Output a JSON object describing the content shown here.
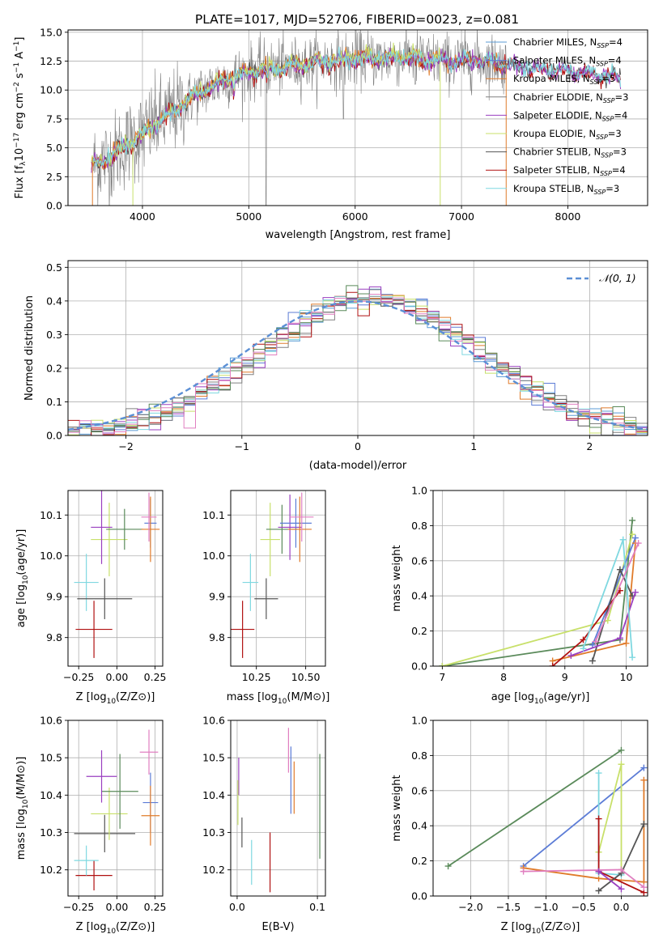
{
  "figure_title": "PLATE=1017, MJD=52706, FIBERID=0023, z=0.081",
  "colors": {
    "Chabrier MILES": "#5b9bd5",
    "Salpeter MILES": "#5c7cd6",
    "Kroupa MILES": "#e07b2a",
    "Chabrier ELODIE": "#808080",
    "Salpeter ELODIE": "#9a3fc0",
    "Kroupa ELODIE": "#c8e06a",
    "Chabrier STELIB": "#555555",
    "Salpeter STELIB": "#b01010",
    "Kroupa STELIB": "#7fd8e0",
    "normal": "#5b8fd5",
    "green": "#5a8a5a",
    "pink": "#e07fc0"
  },
  "chart_data": [
    {
      "id": "spectrum",
      "type": "line",
      "xlabel": "wavelength [Angstrom, rest frame]",
      "ylabel": "Flux [f_λ10^-17 erg cm^-2 s^-1 A^-1]",
      "xlim": [
        3300,
        8750
      ],
      "ylim": [
        0,
        15.2
      ],
      "xticks": [
        4000,
        5000,
        6000,
        7000,
        8000
      ],
      "yticks": [
        0.0,
        2.5,
        5.0,
        7.5,
        10.0,
        12.5,
        15.0
      ],
      "legend": [
        {
          "label": "Chabrier MILES, N",
          "sub": "SSP",
          "suffix": "=4",
          "color": "#5b9bd5"
        },
        {
          "label": "Salpeter MILES, N",
          "sub": "SSP",
          "suffix": "=4",
          "color": "#5c7cd6"
        },
        {
          "label": "Kroupa MILES, N",
          "sub": "SSP",
          "suffix": "=5",
          "color": "#e07b2a"
        },
        {
          "label": "Chabrier ELODIE, N",
          "sub": "SSP",
          "suffix": "=3",
          "color": "#808080"
        },
        {
          "label": "Salpeter ELODIE, N",
          "sub": "SSP",
          "suffix": "=4",
          "color": "#9a3fc0"
        },
        {
          "label": "Kroupa ELODIE, N",
          "sub": "SSP",
          "suffix": "=3",
          "color": "#c8e06a"
        },
        {
          "label": "Chabrier STELIB, N",
          "sub": "SSP",
          "suffix": "=3",
          "color": "#555555"
        },
        {
          "label": "Salpeter STELIB, N",
          "sub": "SSP",
          "suffix": "=4",
          "color": "#b01010"
        },
        {
          "label": "Kroupa STELIB, N",
          "sub": "SSP",
          "suffix": "=3",
          "color": "#7fd8e0"
        }
      ],
      "continuum": [
        [
          3520,
          3.5
        ],
        [
          3700,
          4.2
        ],
        [
          3900,
          5.6
        ],
        [
          4000,
          6.1
        ],
        [
          4100,
          7.0
        ],
        [
          4300,
          8.2
        ],
        [
          4500,
          9.6
        ],
        [
          4700,
          10.6
        ],
        [
          4900,
          11.3
        ],
        [
          5100,
          11.8
        ],
        [
          5300,
          12.0
        ],
        [
          5500,
          12.2
        ],
        [
          5700,
          12.5
        ],
        [
          5900,
          12.6
        ],
        [
          6100,
          12.8
        ],
        [
          6300,
          12.7
        ],
        [
          6500,
          12.9
        ],
        [
          6700,
          12.6
        ],
        [
          6900,
          12.5
        ],
        [
          7100,
          12.6
        ],
        [
          7300,
          12.5
        ],
        [
          7450,
          12.2
        ],
        [
          7700,
          11.9
        ],
        [
          8000,
          11.7
        ],
        [
          8300,
          11.4
        ],
        [
          8500,
          11.1
        ]
      ]
    },
    {
      "id": "residuals",
      "type": "line",
      "xlabel": "(data-model)/error",
      "ylabel": "Normed distribution",
      "xlim": [
        -2.5,
        2.5
      ],
      "ylim": [
        0,
        0.52
      ],
      "xticks": [
        -2,
        -1,
        0,
        1,
        2
      ],
      "yticks": [
        0.0,
        0.1,
        0.2,
        0.3,
        0.4,
        0.5
      ],
      "legend_label": "𝒩(0, 1)",
      "normal": {
        "mean": 0,
        "sigma": 1
      }
    },
    {
      "id": "age_vs_Z",
      "type": "scatter",
      "xlabel": "Z [log10(Z/Z⊙)]",
      "ylabel": "age  [log10(age/yr)]",
      "xlim": [
        -0.32,
        0.3
      ],
      "ylim": [
        9.73,
        10.16
      ],
      "xticks": [
        -0.25,
        0.0,
        0.25
      ],
      "xticklabels": [
        "−0.25",
        "0.00",
        "0.25"
      ],
      "yticks": [
        9.8,
        9.9,
        10.0,
        10.1
      ],
      "points": [
        {
          "x": -0.15,
          "y": 9.82,
          "xerr": 0.12,
          "yerr": 0.07,
          "color": "#b01010"
        },
        {
          "x": -0.2,
          "y": 9.935,
          "xerr": 0.08,
          "yerr": 0.07,
          "color": "#7fd8e0"
        },
        {
          "x": -0.08,
          "y": 9.895,
          "xerr": 0.18,
          "yerr": 0.05,
          "color": "#555555"
        },
        {
          "x": -0.05,
          "y": 10.04,
          "xerr": 0.12,
          "yerr": 0.09,
          "color": "#c8e06a"
        },
        {
          "x": -0.1,
          "y": 10.07,
          "xerr": 0.07,
          "yerr": 0.09,
          "color": "#9a3fc0"
        },
        {
          "x": 0.05,
          "y": 10.065,
          "xerr": 0.12,
          "yerr": 0.05,
          "color": "#5a8a5a"
        },
        {
          "x": 0.22,
          "y": 10.08,
          "xerr": 0.04,
          "yerr": 0.06,
          "color": "#5c7cd6"
        },
        {
          "x": 0.22,
          "y": 10.065,
          "xerr": 0.06,
          "yerr": 0.08,
          "color": "#e07b2a"
        },
        {
          "x": 0.21,
          "y": 10.095,
          "xerr": 0.05,
          "yerr": 0.06,
          "color": "#e07fc0"
        }
      ]
    },
    {
      "id": "age_vs_mass",
      "type": "scatter",
      "xlabel": "mass [log10(M/M⊙)]",
      "ylabel": "",
      "xlim": [
        10.12,
        10.6
      ],
      "ylim": [
        9.73,
        10.16
      ],
      "xticks": [
        10.25,
        10.5
      ],
      "xticklabels": [
        "10.25",
        "10.50"
      ],
      "yticks": [
        9.8,
        9.9,
        10.0,
        10.1
      ],
      "points": [
        {
          "x": 10.18,
          "y": 9.82,
          "xerr": 0.06,
          "yerr": 0.07,
          "color": "#b01010"
        },
        {
          "x": 10.22,
          "y": 9.935,
          "xerr": 0.04,
          "yerr": 0.07,
          "color": "#7fd8e0"
        },
        {
          "x": 10.3,
          "y": 9.895,
          "xerr": 0.06,
          "yerr": 0.05,
          "color": "#555555"
        },
        {
          "x": 10.32,
          "y": 10.04,
          "xerr": 0.05,
          "yerr": 0.09,
          "color": "#c8e06a"
        },
        {
          "x": 10.38,
          "y": 10.065,
          "xerr": 0.08,
          "yerr": 0.06,
          "color": "#5a8a5a"
        },
        {
          "x": 10.42,
          "y": 10.07,
          "xerr": 0.06,
          "yerr": 0.08,
          "color": "#9a3fc0"
        },
        {
          "x": 10.45,
          "y": 10.08,
          "xerr": 0.08,
          "yerr": 0.06,
          "color": "#5c7cd6"
        },
        {
          "x": 10.47,
          "y": 10.065,
          "xerr": 0.06,
          "yerr": 0.08,
          "color": "#e07b2a"
        },
        {
          "x": 10.48,
          "y": 10.095,
          "xerr": 0.06,
          "yerr": 0.06,
          "color": "#e07fc0"
        }
      ]
    },
    {
      "id": "weight_vs_age",
      "type": "line",
      "xlabel": "age  [log10(age/yr)]",
      "ylabel": "mass weight",
      "xlim": [
        6.85,
        10.35
      ],
      "ylim": [
        0,
        1.0
      ],
      "xticks": [
        7,
        8,
        9,
        10
      ],
      "yticks": [
        0.0,
        0.2,
        0.4,
        0.6,
        0.8,
        1.0
      ],
      "series": [
        {
          "color": "#5a8a5a",
          "pts": [
            [
              7.0,
              0.0
            ],
            [
              9.9,
              0.15
            ],
            [
              10.1,
              0.83
            ]
          ]
        },
        {
          "color": "#c8e06a",
          "pts": [
            [
              7.0,
              0.0
            ],
            [
              9.7,
              0.26
            ],
            [
              10.1,
              0.75
            ]
          ]
        },
        {
          "color": "#5c7cd6",
          "pts": [
            [
              9.45,
              0.12
            ],
            [
              10.15,
              0.73
            ]
          ]
        },
        {
          "color": "#e07b2a",
          "pts": [
            [
              8.8,
              0.03
            ],
            [
              10.0,
              0.13
            ],
            [
              10.15,
              0.7
            ]
          ]
        },
        {
          "color": "#b01010",
          "pts": [
            [
              8.8,
              0.0
            ],
            [
              9.3,
              0.15
            ],
            [
              9.9,
              0.43
            ]
          ]
        },
        {
          "color": "#555555",
          "pts": [
            [
              9.45,
              0.03
            ],
            [
              9.9,
              0.55
            ],
            [
              10.1,
              0.4
            ]
          ]
        },
        {
          "color": "#9a3fc0",
          "pts": [
            [
              9.1,
              0.06
            ],
            [
              9.9,
              0.16
            ],
            [
              10.15,
              0.42
            ]
          ]
        },
        {
          "color": "#7fd8e0",
          "pts": [
            [
              9.3,
              0.1
            ],
            [
              9.95,
              0.72
            ],
            [
              10.1,
              0.05
            ]
          ]
        },
        {
          "color": "#e07fc0",
          "pts": [
            [
              9.5,
              0.14
            ],
            [
              10.2,
              0.7
            ]
          ]
        }
      ]
    },
    {
      "id": "mass_vs_Z",
      "type": "scatter",
      "xlabel": "Z [log10(Z/Z⊙)]",
      "ylabel": "mass [log10(M/M⊙)]",
      "xlim": [
        -0.32,
        0.3
      ],
      "ylim": [
        10.13,
        10.6
      ],
      "xticks": [
        -0.25,
        0.0,
        0.25
      ],
      "xticklabels": [
        "−0.25",
        "0.00",
        "0.25"
      ],
      "yticks": [
        10.2,
        10.3,
        10.4,
        10.5,
        10.6
      ],
      "points": [
        {
          "x": -0.15,
          "y": 10.185,
          "xerr": 0.12,
          "yerr": 0.04,
          "color": "#b01010"
        },
        {
          "x": -0.2,
          "y": 10.225,
          "xerr": 0.08,
          "yerr": 0.04,
          "color": "#7fd8e0"
        },
        {
          "x": -0.08,
          "y": 10.297,
          "xerr": 0.2,
          "yerr": 0.05,
          "color": "#555555"
        },
        {
          "x": -0.05,
          "y": 10.35,
          "xerr": 0.12,
          "yerr": 0.07,
          "color": "#c8e06a"
        },
        {
          "x": 0.02,
          "y": 10.41,
          "xerr": 0.12,
          "yerr": 0.1,
          "color": "#5a8a5a"
        },
        {
          "x": -0.1,
          "y": 10.45,
          "xerr": 0.1,
          "yerr": 0.07,
          "color": "#9a3fc0"
        },
        {
          "x": 0.22,
          "y": 10.38,
          "xerr": 0.05,
          "yerr": 0.08,
          "color": "#5c7cd6"
        },
        {
          "x": 0.22,
          "y": 10.345,
          "xerr": 0.06,
          "yerr": 0.08,
          "color": "#e07b2a"
        },
        {
          "x": 0.21,
          "y": 10.515,
          "xerr": 0.06,
          "yerr": 0.06,
          "color": "#e07fc0"
        }
      ]
    },
    {
      "id": "mass_vs_EBV",
      "type": "scatter",
      "xlabel": "E(B-V)",
      "ylabel": "",
      "xlim": [
        -0.008,
        0.11
      ],
      "ylim": [
        10.13,
        10.6
      ],
      "xticks": [
        0.0,
        0.1
      ],
      "xticklabels": [
        "0.0",
        "0.1"
      ],
      "yticks": [
        10.2,
        10.3,
        10.4,
        10.5,
        10.6
      ],
      "points": [
        {
          "x": 0.002,
          "y": 10.45,
          "yerr": 0.05,
          "color": "#9a3fc0"
        },
        {
          "x": 0.001,
          "y": 10.38,
          "yerr": 0.06,
          "color": "#c8e06a"
        },
        {
          "x": 0.006,
          "y": 10.3,
          "yerr": 0.04,
          "color": "#555555"
        },
        {
          "x": 0.018,
          "y": 10.22,
          "yerr": 0.06,
          "color": "#7fd8e0"
        },
        {
          "x": 0.041,
          "y": 10.22,
          "yerr": 0.08,
          "color": "#b01010"
        },
        {
          "x": 0.064,
          "y": 10.52,
          "yerr": 0.06,
          "color": "#e07fc0"
        },
        {
          "x": 0.067,
          "y": 10.44,
          "yerr": 0.09,
          "color": "#5c7cd6"
        },
        {
          "x": 0.071,
          "y": 10.42,
          "yerr": 0.07,
          "color": "#e07b2a"
        },
        {
          "x": 0.103,
          "y": 10.37,
          "yerr": 0.14,
          "color": "#5a8a5a"
        }
      ]
    },
    {
      "id": "weight_vs_Z",
      "type": "line",
      "xlabel": "Z [log10(Z/Z⊙)]",
      "ylabel": "mass weight",
      "xlim": [
        -2.5,
        0.35
      ],
      "ylim": [
        0,
        1.0
      ],
      "xticks": [
        -2.0,
        -1.5,
        -1.0,
        -0.5,
        0.0
      ],
      "xticklabels": [
        "−2.0",
        "−1.5",
        "−1.0",
        "−0.5",
        "0.0"
      ],
      "yticks": [
        0.0,
        0.2,
        0.4,
        0.6,
        0.8,
        1.0
      ],
      "series": [
        {
          "color": "#5a8a5a",
          "pts": [
            [
              -2.3,
              0.17
            ],
            [
              0.0,
              0.83
            ]
          ]
        },
        {
          "color": "#5c7cd6",
          "pts": [
            [
              -1.3,
              0.17
            ],
            [
              0.3,
              0.73
            ]
          ]
        },
        {
          "color": "#e07b2a",
          "pts": [
            [
              -1.3,
              0.16
            ],
            [
              -0.3,
              0.1
            ],
            [
              0.3,
              0.08
            ],
            [
              0.3,
              0.66
            ]
          ]
        },
        {
          "color": "#c8e06a",
          "pts": [
            [
              -0.3,
              0.25
            ],
            [
              0.0,
              0.75
            ],
            [
              0.0,
              0.15
            ]
          ]
        },
        {
          "color": "#7fd8e0",
          "pts": [
            [
              -0.3,
              0.7
            ],
            [
              -0.3,
              0.13
            ],
            [
              0.0,
              0.12
            ]
          ]
        },
        {
          "color": "#b01010",
          "pts": [
            [
              -0.3,
              0.44
            ],
            [
              -0.3,
              0.14
            ],
            [
              0.3,
              0.02
            ]
          ]
        },
        {
          "color": "#555555",
          "pts": [
            [
              -0.3,
              0.03
            ],
            [
              0.0,
              0.13
            ],
            [
              0.3,
              0.41
            ]
          ]
        },
        {
          "color": "#e07fc0",
          "pts": [
            [
              -1.3,
              0.14
            ],
            [
              0.0,
              0.15
            ],
            [
              0.3,
              0.05
            ]
          ]
        },
        {
          "color": "#9a3fc0",
          "pts": [
            [
              -0.3,
              0.14
            ],
            [
              0.0,
              0.04
            ]
          ]
        }
      ]
    }
  ]
}
